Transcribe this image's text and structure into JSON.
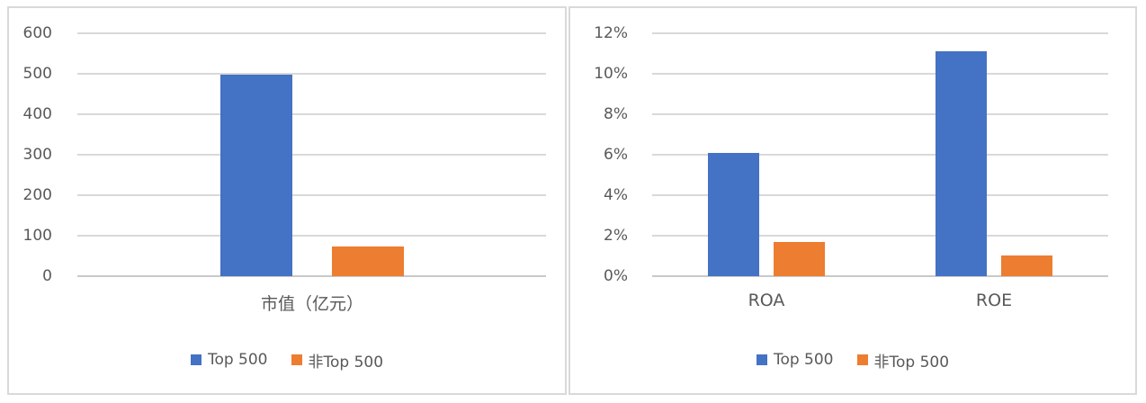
{
  "legend": {
    "series_1_label": "Top 500",
    "series_2_label": "非Top 500"
  },
  "colors": {
    "series_1": "#4472C4",
    "series_2": "#ED7D31",
    "gridline": "#D9D9D9",
    "axis_text": "#595959",
    "panel_border": "#D9D9D9"
  },
  "chart_data": [
    {
      "type": "bar",
      "title": "",
      "categories": [
        "市值（亿元）"
      ],
      "series": [
        {
          "name": "Top 500",
          "color": "#4472C4",
          "values": [
            497
          ]
        },
        {
          "name": "非Top 500",
          "color": "#ED7D31",
          "values": [
            73
          ]
        }
      ],
      "ylim": [
        0,
        600
      ],
      "y_ticks": [
        "600",
        "500",
        "400",
        "300",
        "200",
        "100",
        "0"
      ],
      "y_tick_values": [
        600,
        500,
        400,
        300,
        200,
        100,
        0
      ],
      "grid": true,
      "legend_position": "bottom"
    },
    {
      "type": "bar",
      "title": "",
      "categories": [
        "ROA",
        "ROE"
      ],
      "series": [
        {
          "name": "Top 500",
          "color": "#4472C4",
          "values": [
            6.1,
            11.1
          ]
        },
        {
          "name": "非Top 500",
          "color": "#ED7D31",
          "values": [
            1.7,
            1.0
          ]
        }
      ],
      "ylim": [
        0,
        12
      ],
      "y_ticks": [
        "12%",
        "10%",
        "8%",
        "6%",
        "4%",
        "2%",
        "0%"
      ],
      "y_tick_values": [
        12,
        10,
        8,
        6,
        4,
        2,
        0
      ],
      "grid": true,
      "legend_position": "bottom"
    }
  ]
}
